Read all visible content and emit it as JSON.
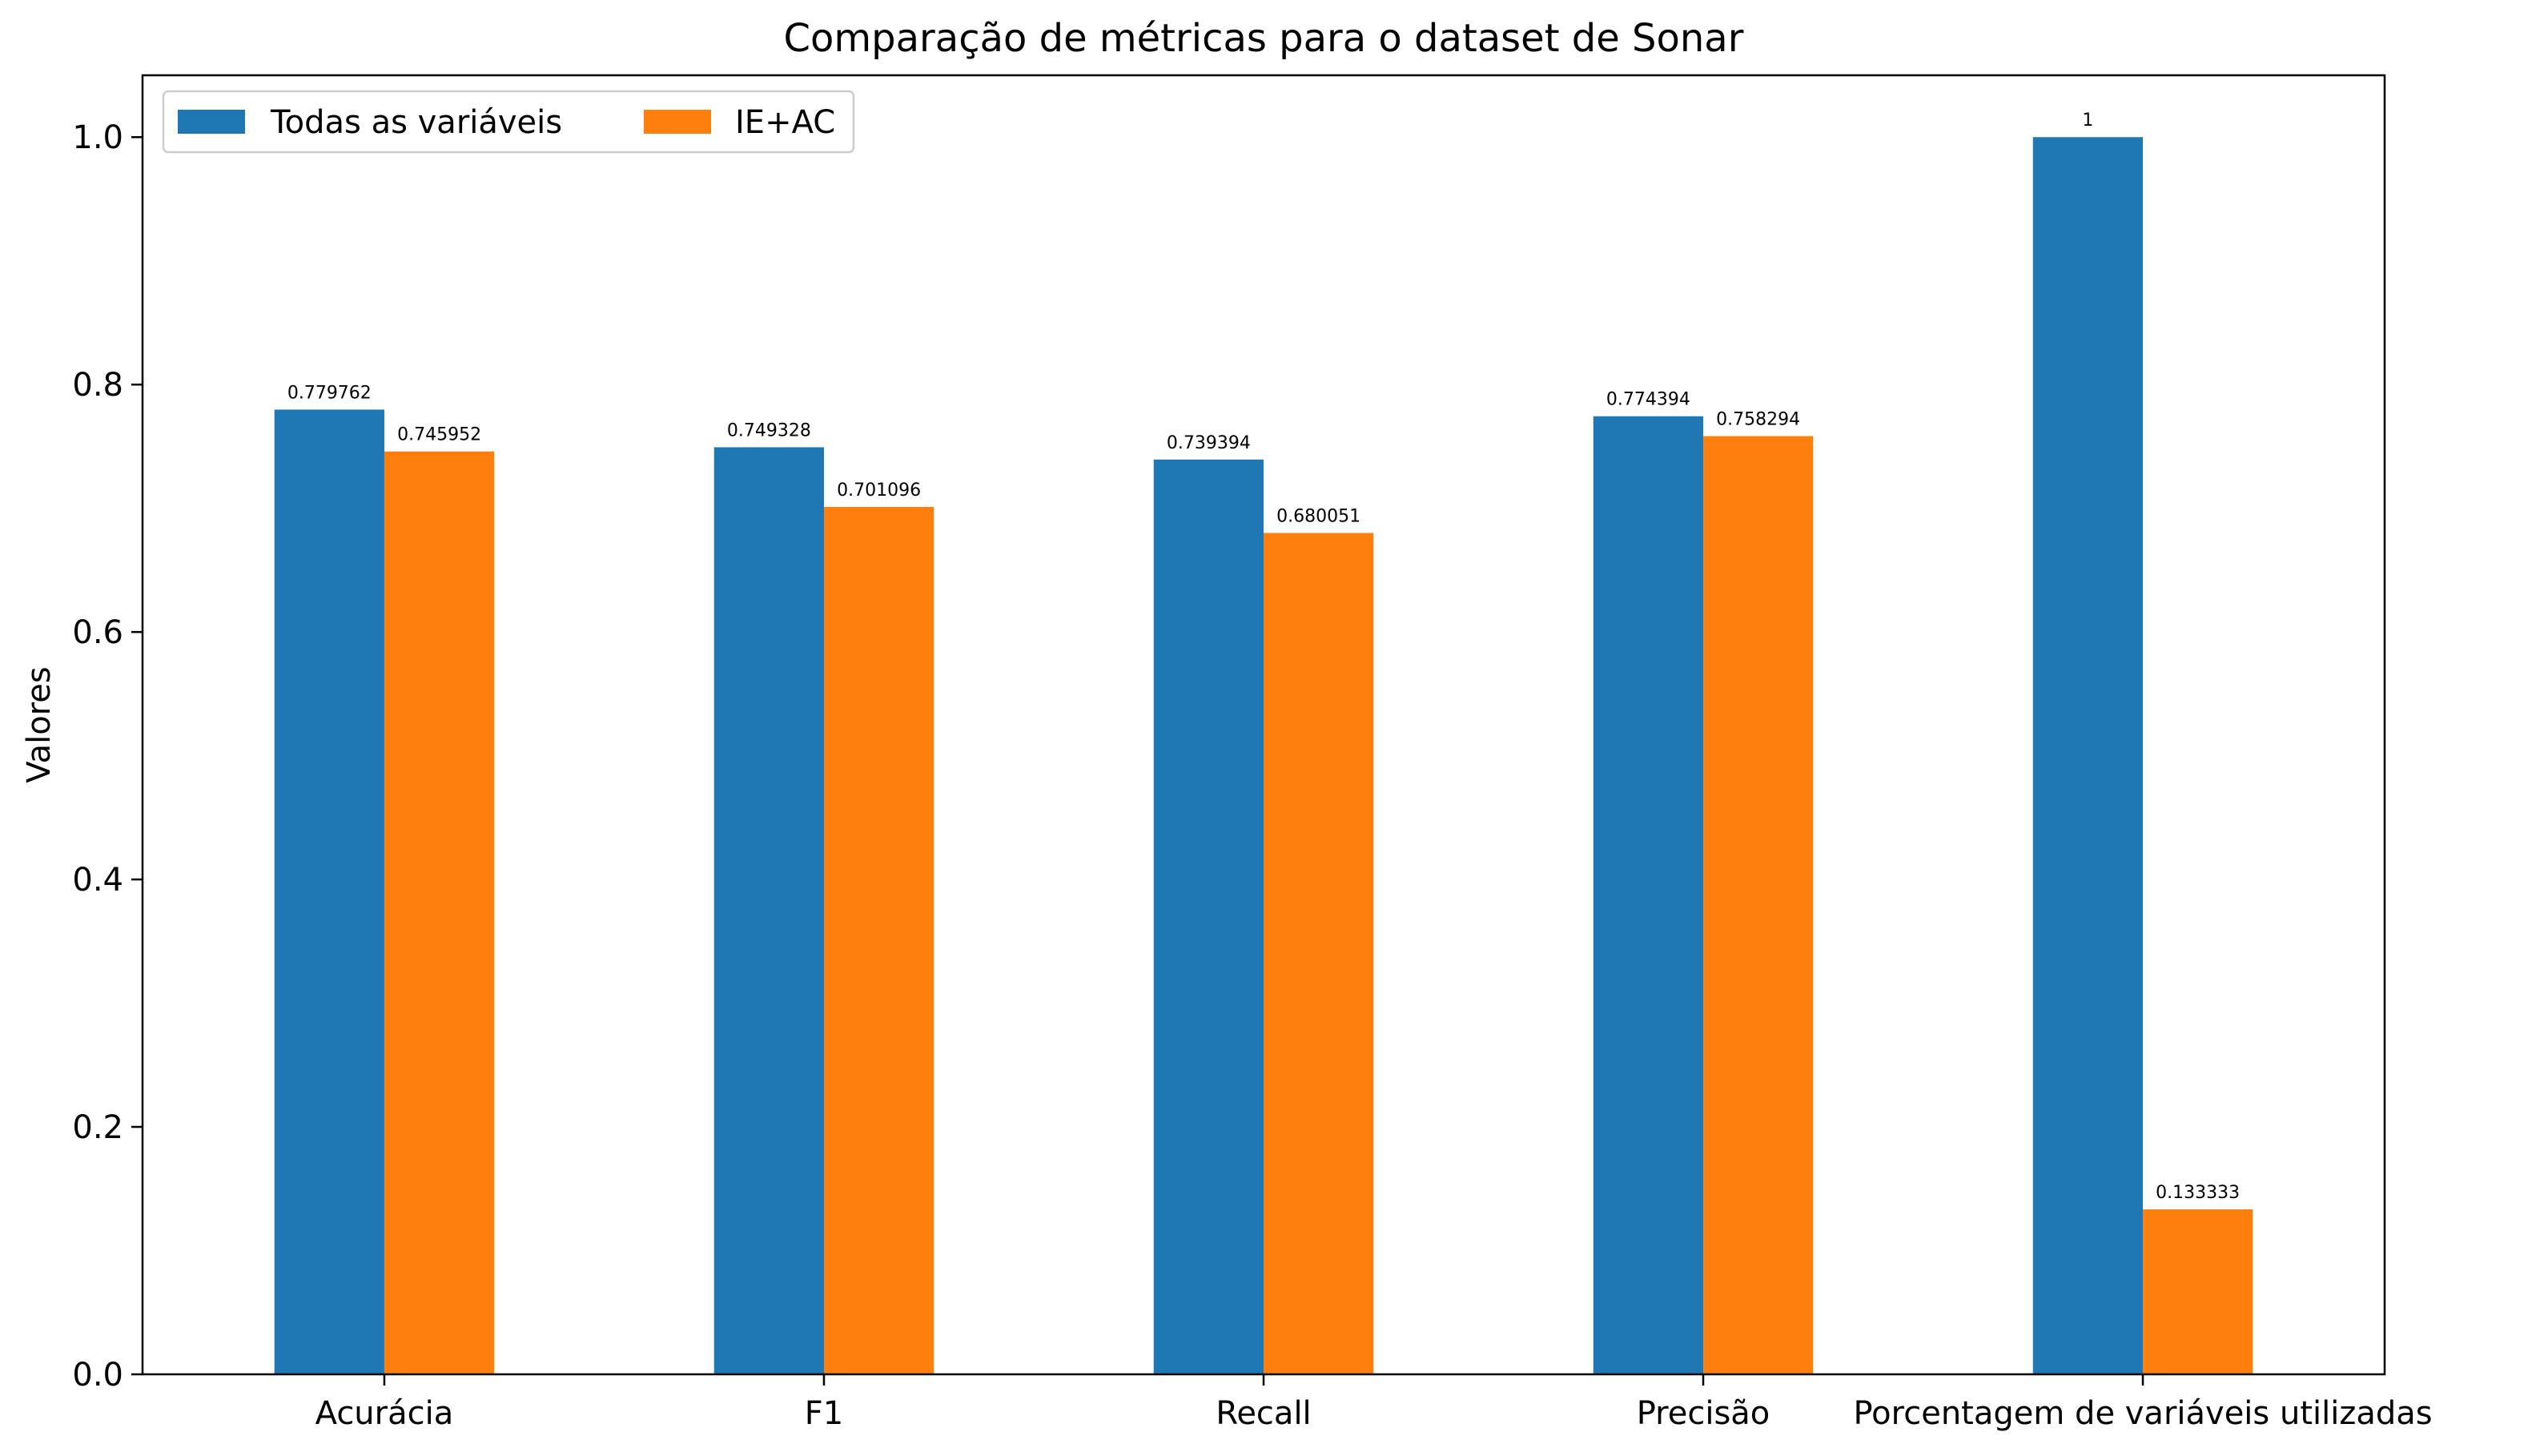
{
  "chart_data": {
    "type": "bar",
    "title": "Comparação de métricas para o dataset de Sonar",
    "xlabel": "",
    "ylabel": "Valores",
    "categories": [
      "Acurácia",
      "F1",
      "Recall",
      "Precisão",
      "Porcentagem de variáveis utilizadas"
    ],
    "series": [
      {
        "name": "Todas as variáveis",
        "color": "#1f77b4",
        "values": [
          0.779762,
          0.749328,
          0.739394,
          0.774394,
          1
        ],
        "labels": [
          "0.779762",
          "0.749328",
          "0.739394",
          "0.774394",
          "1"
        ]
      },
      {
        "name": "IE+AC",
        "color": "#ff7f0e",
        "values": [
          0.745952,
          0.701096,
          0.680051,
          0.758294,
          0.133333
        ],
        "labels": [
          "0.745952",
          "0.701096",
          "0.680051",
          "0.758294",
          "0.133333"
        ]
      }
    ],
    "ylim": [
      0,
      1.05
    ],
    "yticks": [
      0.0,
      0.2,
      0.4,
      0.6,
      0.8,
      1.0
    ],
    "ytick_labels": [
      "0.0",
      "0.2",
      "0.4",
      "0.6",
      "0.8",
      "1.0"
    ],
    "grid": false,
    "legend_position": "top-left"
  }
}
